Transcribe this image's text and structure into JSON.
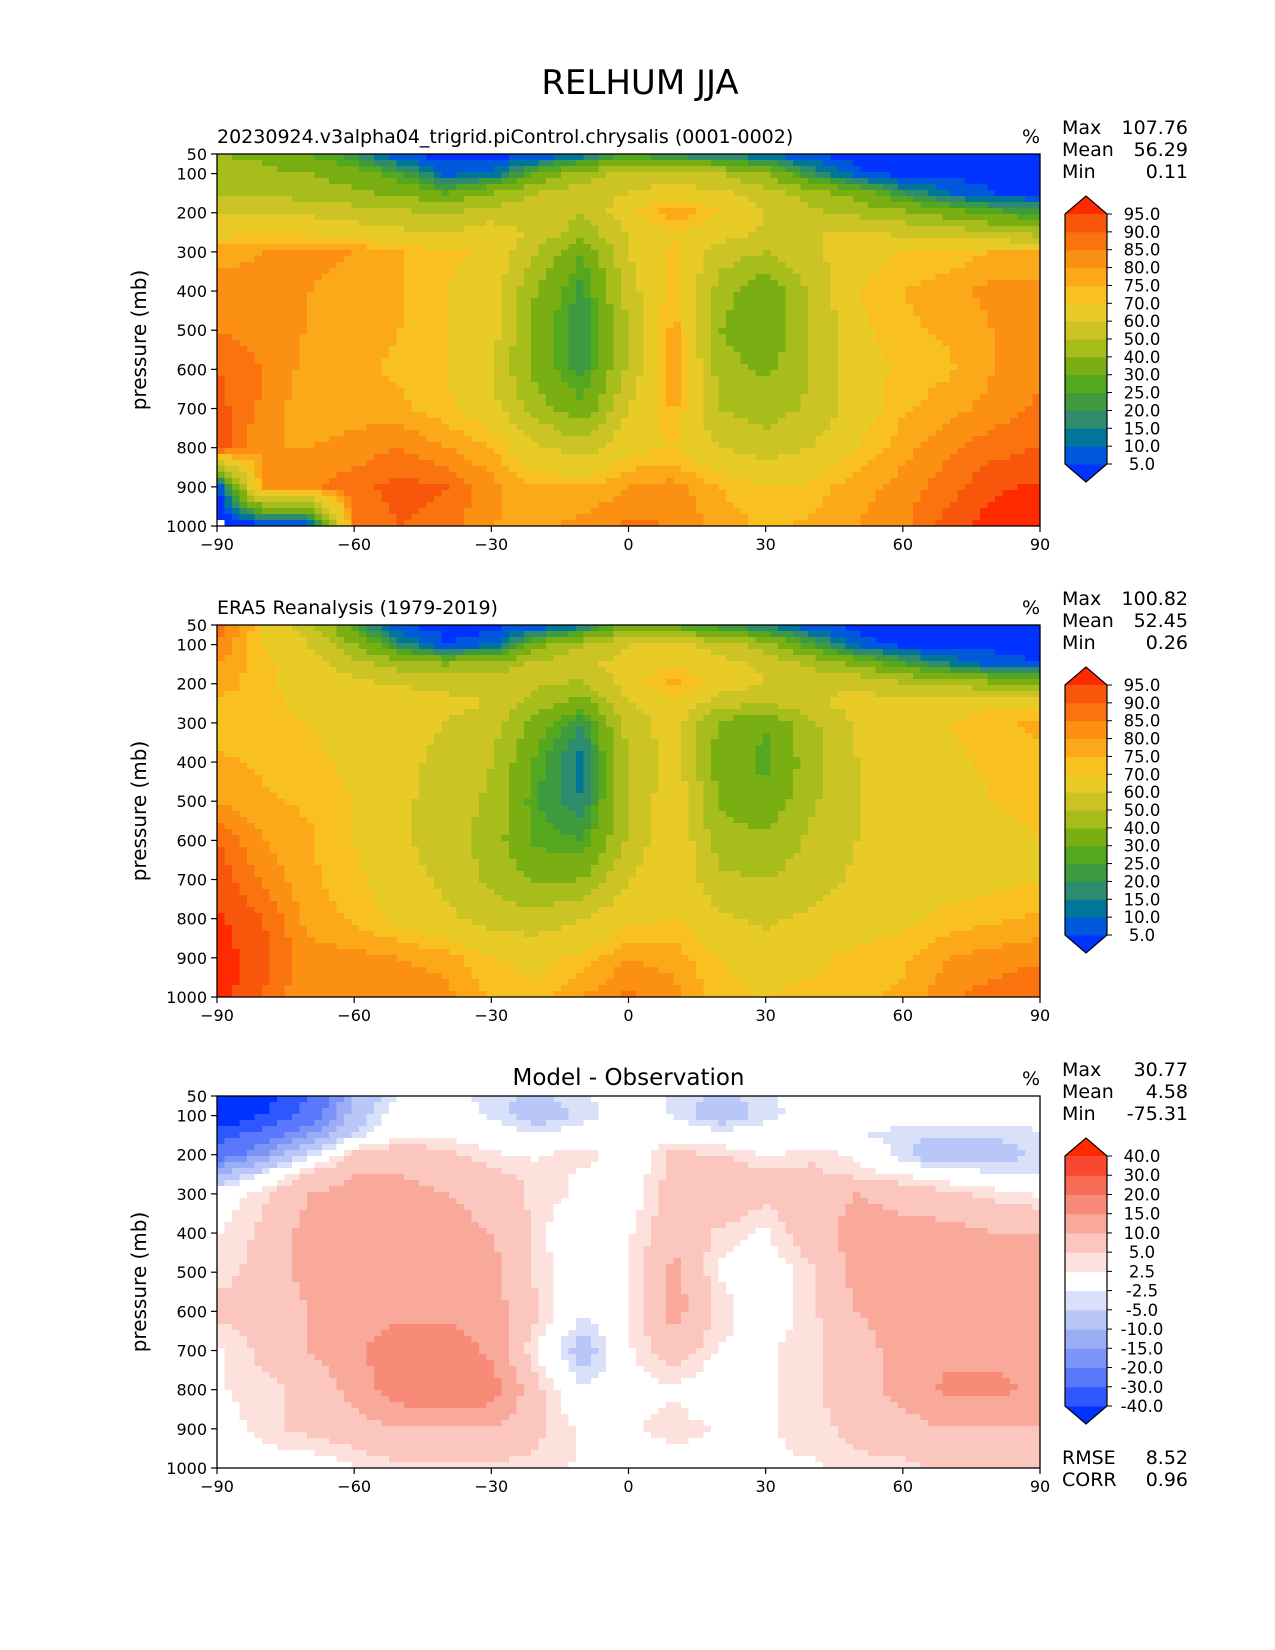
{
  "figure": {
    "title": "RELHUM JJA"
  },
  "chart_data": [
    {
      "type": "heatmap",
      "title": "20230924.v3alpha04_trigrid.piControl.chrysalis (0001-0002)",
      "units": "%",
      "xlabel": "",
      "ylabel": "pressure (mb)",
      "xlim": [
        -90,
        90
      ],
      "ylim": [
        1000,
        50
      ],
      "xticks": [
        "−90",
        "−60",
        "−30",
        "0",
        "30",
        "60",
        "90"
      ],
      "yticks": [
        "50",
        "100",
        "200",
        "300",
        "400",
        "500",
        "600",
        "700",
        "800",
        "900",
        "1000"
      ],
      "stats": {
        "max_label": "Max",
        "max": "107.76",
        "mean_label": "Mean",
        "mean": "56.29",
        "min_label": "Min",
        "min": "0.11"
      },
      "colorbar": {
        "levels": [
          "5.0",
          "10.0",
          "15.0",
          "20.0",
          "25.0",
          "30.0",
          "40.0",
          "50.0",
          "60.0",
          "70.0",
          "75.0",
          "80.0",
          "85.0",
          "90.0",
          "95.0"
        ],
        "colors": [
          "#0033ff",
          "#0059dd",
          "#00779a",
          "#2e8b6e",
          "#3d9a3e",
          "#53a820",
          "#7aaf13",
          "#a6bd1c",
          "#ccc424",
          "#e8cb26",
          "#f9c11f",
          "#fba919",
          "#fb9013",
          "#fa730e",
          "#f8560a",
          "#ff2a00"
        ]
      },
      "field": {
        "lat": [
          -90,
          -80,
          -70,
          -60,
          -50,
          -40,
          -30,
          -20,
          -10,
          0,
          10,
          20,
          30,
          40,
          50,
          60,
          70,
          80,
          90
        ],
        "lev": [
          50,
          100,
          150,
          200,
          250,
          300,
          400,
          500,
          600,
          700,
          800,
          900,
          1000
        ],
        "values": [
          [
            40,
            38,
            30,
            20,
            3,
            3,
            3,
            3,
            10,
            25,
            15,
            12,
            8,
            4,
            3,
            3,
            3,
            3,
            3
          ],
          [
            45,
            42,
            40,
            35,
            25,
            8,
            10,
            30,
            45,
            55,
            55,
            50,
            40,
            20,
            6,
            3,
            3,
            3,
            3
          ],
          [
            50,
            48,
            45,
            42,
            38,
            30,
            40,
            50,
            55,
            60,
            65,
            62,
            55,
            45,
            35,
            20,
            10,
            5,
            4
          ],
          [
            60,
            60,
            58,
            55,
            52,
            50,
            55,
            55,
            50,
            68,
            80,
            70,
            60,
            52,
            48,
            42,
            35,
            28,
            22
          ],
          [
            68,
            70,
            68,
            65,
            62,
            60,
            65,
            58,
            45,
            60,
            70,
            65,
            58,
            60,
            60,
            58,
            55,
            50,
            45
          ],
          [
            78,
            80,
            82,
            80,
            75,
            72,
            68,
            50,
            30,
            60,
            72,
            55,
            50,
            58,
            66,
            70,
            72,
            75,
            75
          ],
          [
            82,
            82,
            80,
            78,
            76,
            70,
            65,
            40,
            22,
            55,
            75,
            45,
            32,
            52,
            70,
            75,
            78,
            82,
            82
          ],
          [
            85,
            82,
            80,
            78,
            75,
            70,
            65,
            35,
            20,
            50,
            78,
            40,
            30,
            50,
            68,
            74,
            76,
            80,
            84
          ],
          [
            90,
            85,
            78,
            76,
            74,
            70,
            60,
            35,
            22,
            52,
            82,
            45,
            38,
            50,
            66,
            72,
            74,
            80,
            84
          ],
          [
            92,
            84,
            76,
            78,
            76,
            72,
            64,
            45,
            32,
            60,
            76,
            50,
            45,
            52,
            65,
            74,
            78,
            82,
            86
          ],
          [
            94,
            80,
            80,
            82,
            85,
            80,
            75,
            62,
            55,
            68,
            70,
            60,
            55,
            60,
            70,
            78,
            84,
            88,
            90
          ],
          [
            0,
            82,
            84,
            88,
            92,
            90,
            82,
            75,
            75,
            80,
            82,
            75,
            70,
            72,
            78,
            82,
            88,
            94,
            96
          ],
          [
            0,
            0,
            0,
            85,
            90,
            88,
            80,
            78,
            82,
            86,
            85,
            78,
            74,
            76,
            80,
            84,
            92,
            98,
            98
          ]
        ],
        "missing_below_one": true
      }
    },
    {
      "type": "heatmap",
      "title": "ERA5 Reanalysis (1979-2019)",
      "units": "%",
      "xlabel": "",
      "ylabel": "pressure (mb)",
      "xlim": [
        -90,
        90
      ],
      "ylim": [
        1000,
        50
      ],
      "xticks": [
        "−90",
        "−60",
        "−30",
        "0",
        "30",
        "60",
        "90"
      ],
      "yticks": [
        "50",
        "100",
        "200",
        "300",
        "400",
        "500",
        "600",
        "700",
        "800",
        "900",
        "1000"
      ],
      "stats": {
        "max_label": "Max",
        "max": "100.82",
        "mean_label": "Mean",
        "mean": "52.45",
        "min_label": "Min",
        "min": "0.26"
      },
      "colorbar": {
        "levels": [
          "5.0",
          "10.0",
          "15.0",
          "20.0",
          "25.0",
          "30.0",
          "40.0",
          "50.0",
          "60.0",
          "70.0",
          "75.0",
          "80.0",
          "85.0",
          "90.0",
          "95.0"
        ],
        "colors": [
          "#0033ff",
          "#0059dd",
          "#00779a",
          "#2e8b6e",
          "#3d9a3e",
          "#53a820",
          "#7aaf13",
          "#a6bd1c",
          "#ccc424",
          "#e8cb26",
          "#f9c11f",
          "#fba919",
          "#fb9013",
          "#fa730e",
          "#f8560a",
          "#ff2a00"
        ]
      },
      "field": {
        "lat": [
          -90,
          -80,
          -70,
          -60,
          -50,
          -40,
          -30,
          -20,
          -10,
          0,
          10,
          20,
          30,
          40,
          50,
          60,
          70,
          80,
          90
        ],
        "lev": [
          50,
          100,
          150,
          200,
          250,
          300,
          400,
          500,
          600,
          700,
          800,
          900,
          1000
        ],
        "values": [
          [
            90,
            70,
            55,
            25,
            4,
            3,
            3,
            3,
            10,
            35,
            25,
            20,
            12,
            5,
            3,
            3,
            3,
            3,
            3
          ],
          [
            85,
            70,
            60,
            40,
            18,
            5,
            8,
            35,
            50,
            60,
            65,
            55,
            45,
            25,
            8,
            3,
            3,
            3,
            3
          ],
          [
            80,
            72,
            65,
            55,
            45,
            40,
            45,
            52,
            58,
            64,
            70,
            64,
            58,
            48,
            38,
            25,
            15,
            8,
            5
          ],
          [
            78,
            72,
            66,
            62,
            60,
            58,
            58,
            52,
            48,
            66,
            78,
            66,
            60,
            58,
            58,
            52,
            48,
            42,
            38
          ],
          [
            74,
            72,
            68,
            64,
            62,
            62,
            60,
            45,
            35,
            60,
            66,
            55,
            50,
            58,
            64,
            64,
            66,
            68,
            68
          ],
          [
            72,
            72,
            70,
            66,
            62,
            60,
            55,
            35,
            20,
            55,
            65,
            38,
            30,
            48,
            62,
            66,
            70,
            74,
            76
          ],
          [
            76,
            74,
            72,
            68,
            62,
            58,
            50,
            28,
            12,
            50,
            66,
            35,
            28,
            45,
            60,
            65,
            68,
            72,
            74
          ],
          [
            80,
            76,
            74,
            70,
            62,
            56,
            48,
            25,
            15,
            50,
            68,
            38,
            32,
            48,
            60,
            64,
            66,
            70,
            72
          ],
          [
            90,
            80,
            76,
            70,
            62,
            55,
            45,
            28,
            25,
            52,
            70,
            45,
            42,
            52,
            60,
            64,
            66,
            68,
            70
          ],
          [
            94,
            84,
            76,
            72,
            64,
            58,
            48,
            38,
            40,
            60,
            68,
            52,
            50,
            55,
            62,
            66,
            66,
            68,
            70
          ],
          [
            96,
            90,
            78,
            74,
            68,
            62,
            56,
            54,
            60,
            68,
            70,
            62,
            58,
            62,
            66,
            68,
            72,
            74,
            76
          ],
          [
            98,
            92,
            82,
            82,
            80,
            78,
            70,
            68,
            72,
            80,
            78,
            70,
            66,
            68,
            72,
            74,
            80,
            82,
            84
          ],
          [
            98,
            90,
            80,
            84,
            84,
            82,
            74,
            72,
            80,
            86,
            82,
            72,
            70,
            72,
            74,
            76,
            84,
            88,
            90
          ]
        ],
        "missing_below_one": false
      }
    },
    {
      "type": "heatmap",
      "title": "Model - Observation",
      "units": "%",
      "xlabel": "",
      "ylabel": "pressure (mb)",
      "xlim": [
        -90,
        90
      ],
      "ylim": [
        1000,
        50
      ],
      "xticks": [
        "−90",
        "−60",
        "−30",
        "0",
        "30",
        "60",
        "90"
      ],
      "yticks": [
        "50",
        "100",
        "200",
        "300",
        "400",
        "500",
        "600",
        "700",
        "800",
        "900",
        "1000"
      ],
      "stats": {
        "max_label": "Max",
        "max": "30.77",
        "mean_label": "Mean",
        "mean": "4.58",
        "min_label": "Min",
        "min": "-75.31"
      },
      "extra_stats": [
        {
          "label": "RMSE",
          "value": "8.52"
        },
        {
          "label": "CORR",
          "value": "0.96"
        }
      ],
      "colorbar": {
        "levels": [
          "-40.0",
          "-30.0",
          "-20.0",
          "-15.0",
          "-10.0",
          "-5.0",
          "-2.5",
          "2.5",
          "5.0",
          "10.0",
          "15.0",
          "20.0",
          "30.0",
          "40.0"
        ],
        "colors": [
          "#0033ff",
          "#2f57ff",
          "#5a78fb",
          "#7c94f7",
          "#9badf5",
          "#b9c6f8",
          "#d9e0fa",
          "#ffffff",
          "#fde1dc",
          "#fbc6bd",
          "#f9a99a",
          "#f78b78",
          "#f76b55",
          "#f9482f",
          "#ff2a00"
        ]
      },
      "field": {
        "lat": [
          -90,
          -80,
          -70,
          -60,
          -50,
          -40,
          -30,
          -20,
          -10,
          0,
          10,
          20,
          30,
          40,
          50,
          60,
          70,
          80,
          90
        ],
        "lev": [
          50,
          100,
          150,
          200,
          250,
          300,
          400,
          500,
          600,
          700,
          800,
          900,
          1000
        ],
        "values": [
          [
            -60,
            -45,
            -30,
            -10,
            -2,
            -1,
            -4,
            -6,
            -3,
            0,
            -3,
            -6,
            -3,
            -1,
            0,
            0,
            0,
            0,
            0
          ],
          [
            -50,
            -40,
            -25,
            -8,
            0,
            0,
            -3,
            -8,
            -4,
            0,
            -3,
            -8,
            -4,
            0,
            0,
            -1,
            -1,
            -1,
            -1
          ],
          [
            -35,
            -25,
            -15,
            -4,
            2,
            2,
            0,
            -2,
            0,
            0,
            1,
            -1,
            0,
            0,
            -2,
            -4,
            -5,
            -4,
            -3
          ],
          [
            -25,
            -15,
            -4,
            6,
            8,
            6,
            3,
            2,
            4,
            0,
            6,
            5,
            2,
            4,
            2,
            -4,
            -10,
            -8,
            -4
          ],
          [
            -10,
            -2,
            6,
            10,
            10,
            8,
            6,
            4,
            2,
            0,
            6,
            8,
            6,
            6,
            4,
            2,
            0,
            -2,
            -3
          ],
          [
            0,
            4,
            10,
            12,
            12,
            10,
            8,
            4,
            2,
            0,
            8,
            10,
            6,
            8,
            10,
            8,
            6,
            4,
            2
          ],
          [
            2,
            6,
            12,
            12,
            14,
            12,
            10,
            4,
            -3,
            2,
            8,
            4,
            2,
            8,
            12,
            12,
            12,
            10,
            10
          ],
          [
            4,
            6,
            12,
            12,
            14,
            14,
            12,
            4,
            0,
            2,
            12,
            2,
            0,
            4,
            12,
            14,
            12,
            12,
            12
          ],
          [
            6,
            6,
            10,
            12,
            14,
            14,
            12,
            6,
            -2,
            2,
            12,
            4,
            0,
            4,
            10,
            12,
            14,
            14,
            14
          ],
          [
            2,
            6,
            10,
            14,
            18,
            18,
            14,
            2,
            -8,
            2,
            8,
            2,
            2,
            4,
            8,
            12,
            14,
            14,
            12
          ],
          [
            2,
            4,
            6,
            12,
            18,
            20,
            18,
            6,
            -2,
            0,
            2,
            -1,
            2,
            4,
            8,
            12,
            16,
            16,
            14
          ],
          [
            0,
            4,
            6,
            8,
            10,
            10,
            10,
            6,
            2,
            2,
            4,
            2,
            2,
            4,
            6,
            8,
            10,
            10,
            10
          ],
          [
            0,
            0,
            0,
            2,
            4,
            4,
            4,
            4,
            2,
            0,
            0,
            2,
            2,
            2,
            4,
            4,
            6,
            8,
            8
          ]
        ],
        "missing_below_one": false
      }
    }
  ]
}
